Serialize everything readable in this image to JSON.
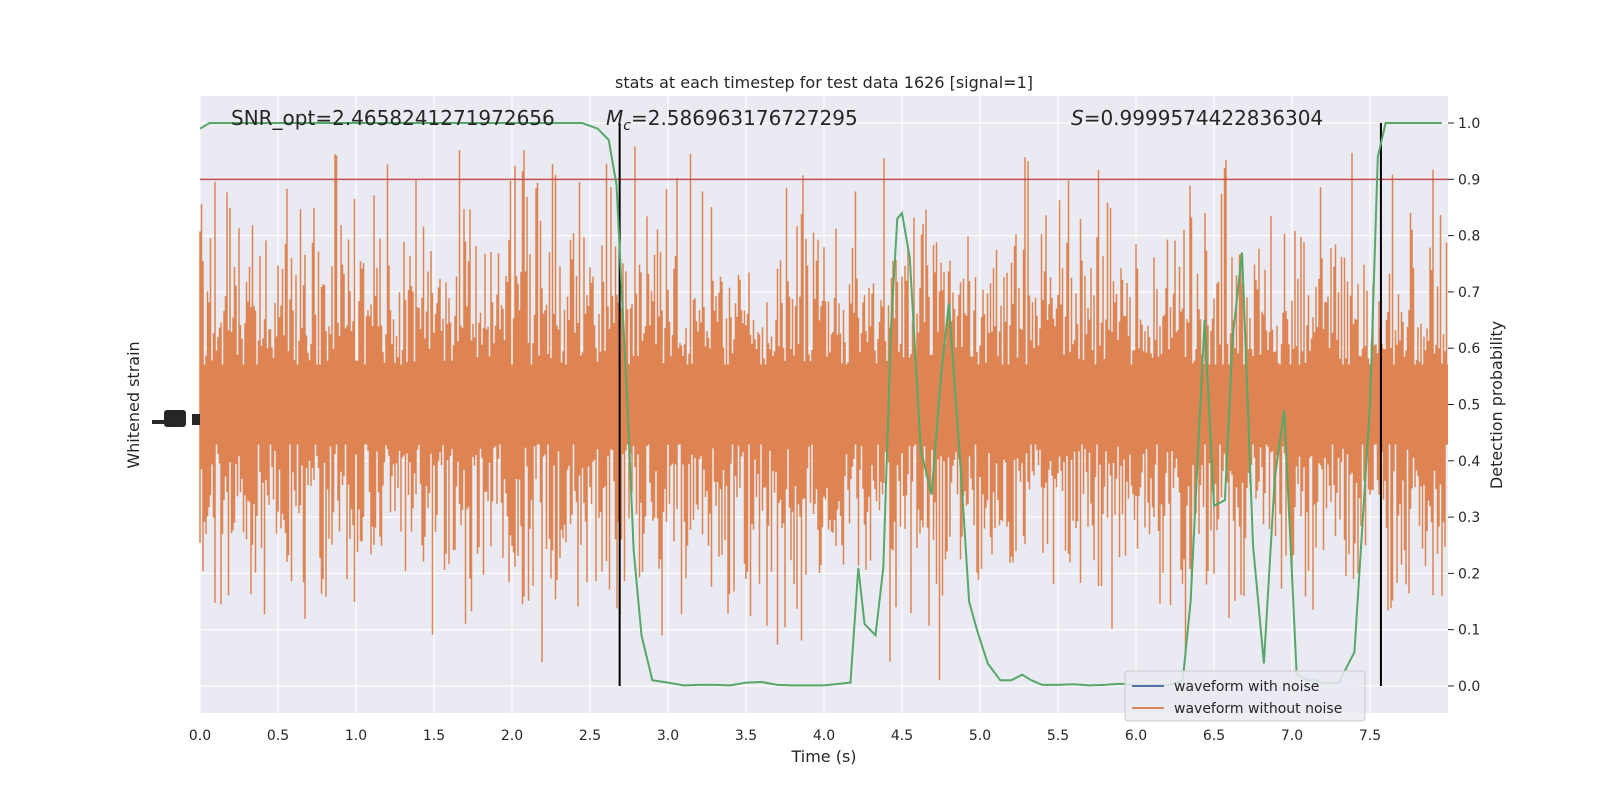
{
  "chart_data": {
    "type": "line",
    "title": "stats at each timestep for test data 1626 [signal=1]",
    "xlabel": "Time (s)",
    "ylabel_left": "Whitened strain",
    "ylabel_right": "Detection probability",
    "xlim": [
      0.0,
      8.0
    ],
    "ylim_right": [
      -0.048,
      1.048
    ],
    "x_ticks": [
      "0.0",
      "0.5",
      "1.0",
      "1.5",
      "2.0",
      "2.5",
      "3.0",
      "3.5",
      "4.0",
      "4.5",
      "5.0",
      "5.5",
      "6.0",
      "6.5",
      "7.0",
      "7.5"
    ],
    "y_ticks_right": [
      "0.0",
      "0.1",
      "0.2",
      "0.3",
      "0.4",
      "0.5",
      "0.6",
      "0.7",
      "0.8",
      "0.9",
      "1.0"
    ],
    "grid": true,
    "background": "#eaeaf2",
    "annotations": {
      "snr": "SNR_opt=2.4658241271972656",
      "mc_symbol": "M",
      "mc_sub": "c",
      "mc_value": "=2.586963176727295",
      "s_symbol": "S",
      "s_value": "=0.9999574422836304"
    },
    "threshold": {
      "y": 0.9,
      "color": "#c44e52"
    },
    "vlines": {
      "x": [
        2.69,
        7.57
      ],
      "color": "#000000"
    },
    "series": [
      {
        "name": "waveform with noise",
        "color": "#4c72b0"
      },
      {
        "name": "waveform without noise",
        "color": "#dd8452"
      },
      {
        "color": "#55a868",
        "x": [
          0.0,
          0.06,
          0.12,
          0.2,
          0.3,
          0.5,
          1.0,
          1.5,
          2.0,
          2.3,
          2.45,
          2.55,
          2.62,
          2.67,
          2.7,
          2.74,
          2.78,
          2.83,
          2.9,
          3.0,
          3.1,
          3.2,
          3.3,
          3.4,
          3.5,
          3.6,
          3.7,
          3.8,
          3.9,
          4.0,
          4.1,
          4.17,
          4.22,
          4.26,
          4.33,
          4.38,
          4.43,
          4.47,
          4.5,
          4.55,
          4.62,
          4.69,
          4.75,
          4.8,
          4.88,
          4.93,
          4.98,
          5.05,
          5.13,
          5.2,
          5.27,
          5.33,
          5.4,
          5.5,
          5.6,
          5.7,
          5.8,
          5.9,
          6.0,
          6.1,
          6.2,
          6.3,
          6.35,
          6.44,
          6.5,
          6.57,
          6.62,
          6.68,
          6.75,
          6.82,
          6.89,
          6.95,
          7.03,
          7.1,
          7.15,
          7.2,
          7.3,
          7.4,
          7.5,
          7.55,
          7.6,
          7.65,
          7.7,
          7.8,
          7.9,
          7.96
        ],
        "y": [
          0.99,
          1.0,
          1.0,
          1.0,
          1.0,
          1.0,
          1.0,
          1.0,
          1.0,
          1.0,
          1.0,
          0.99,
          0.97,
          0.89,
          0.72,
          0.5,
          0.24,
          0.09,
          0.01,
          0.006,
          0.001,
          0.002,
          0.002,
          0.001,
          0.006,
          0.007,
          0.002,
          0.001,
          0.001,
          0.001,
          0.004,
          0.006,
          0.21,
          0.11,
          0.09,
          0.21,
          0.64,
          0.83,
          0.84,
          0.76,
          0.42,
          0.34,
          0.55,
          0.68,
          0.37,
          0.15,
          0.1,
          0.04,
          0.01,
          0.01,
          0.02,
          0.01,
          0.002,
          0.002,
          0.003,
          0.001,
          0.002,
          0.004,
          0.001,
          0.002,
          0.001,
          0.01,
          0.15,
          0.65,
          0.32,
          0.33,
          0.62,
          0.77,
          0.25,
          0.04,
          0.37,
          0.49,
          0.02,
          0.01,
          0.01,
          0.005,
          0.006,
          0.06,
          0.5,
          0.94,
          1.0,
          1.0,
          1.0,
          1.0,
          1.0,
          1.0
        ]
      }
    ]
  }
}
